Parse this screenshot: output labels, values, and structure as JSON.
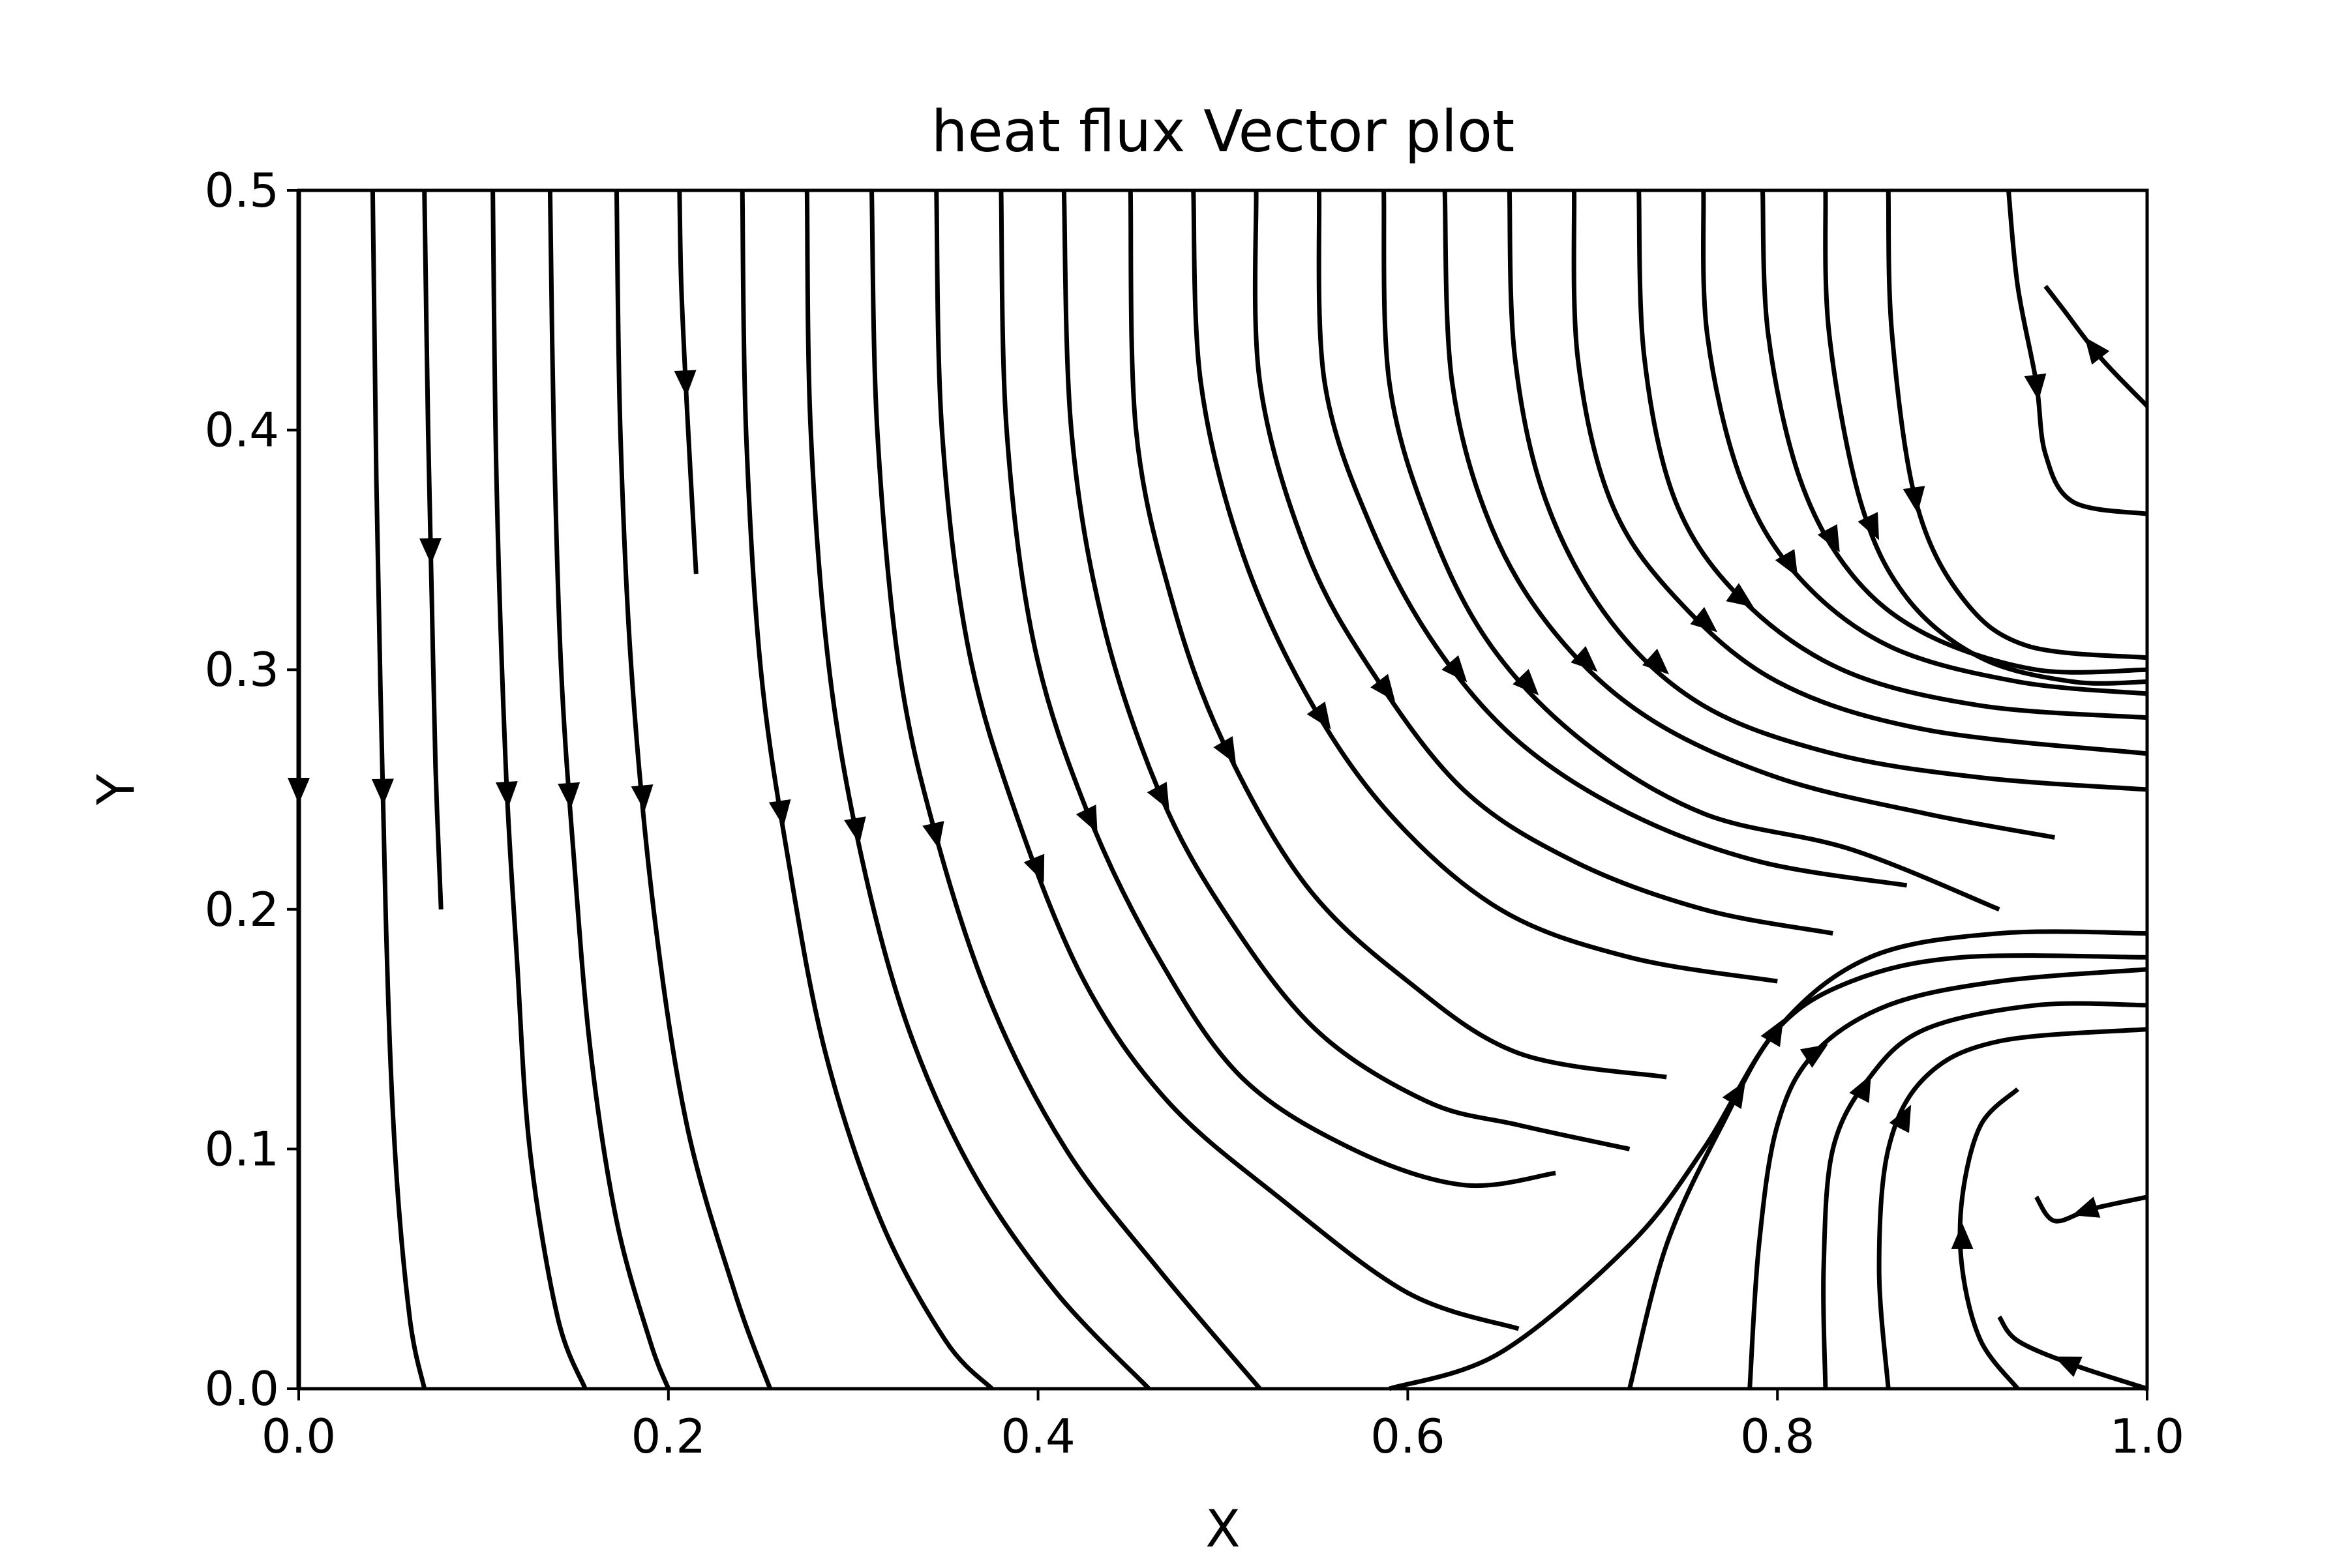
{
  "chart_data": {
    "type": "streamplot",
    "title": "heat flux Vector plot",
    "xlabel": "X",
    "ylabel": "Y",
    "xlim": [
      0.0,
      1.0
    ],
    "ylim": [
      0.0,
      0.5
    ],
    "x_ticks": [
      "0.0",
      "0.2",
      "0.4",
      "0.6",
      "0.8",
      "1.0"
    ],
    "y_ticks": [
      "0.0",
      "0.1",
      "0.2",
      "0.3",
      "0.4",
      "0.5"
    ],
    "grid": false,
    "legend": null,
    "line_color": "#000000",
    "background_color": "#ffffff",
    "streamlines": [
      {
        "points": [
          [
            0.0,
            0.5
          ],
          [
            0.0,
            0.0
          ]
        ]
      },
      {
        "points": [
          [
            0.04,
            0.5
          ],
          [
            0.042,
            0.38
          ],
          [
            0.047,
            0.2
          ],
          [
            0.052,
            0.1
          ],
          [
            0.06,
            0.03
          ],
          [
            0.068,
            0.0
          ]
        ]
      },
      {
        "points": [
          [
            0.068,
            0.5
          ],
          [
            0.07,
            0.4
          ],
          [
            0.072,
            0.33
          ],
          [
            0.074,
            0.26
          ],
          [
            0.077,
            0.2
          ]
        ]
      },
      {
        "points": [
          [
            0.105,
            0.5
          ],
          [
            0.107,
            0.38
          ],
          [
            0.112,
            0.26
          ],
          [
            0.118,
            0.18
          ],
          [
            0.125,
            0.1
          ],
          [
            0.14,
            0.03
          ],
          [
            0.155,
            0.0
          ]
        ]
      },
      {
        "points": [
          [
            0.136,
            0.5
          ],
          [
            0.138,
            0.4
          ],
          [
            0.142,
            0.3
          ],
          [
            0.149,
            0.22
          ],
          [
            0.158,
            0.14
          ],
          [
            0.172,
            0.07
          ],
          [
            0.19,
            0.02
          ],
          [
            0.2,
            0.0
          ]
        ]
      },
      {
        "points": [
          [
            0.172,
            0.5
          ],
          [
            0.174,
            0.4
          ],
          [
            0.18,
            0.3
          ],
          [
            0.192,
            0.2
          ],
          [
            0.21,
            0.11
          ],
          [
            0.236,
            0.04
          ],
          [
            0.255,
            0.0
          ]
        ]
      },
      {
        "points": [
          [
            0.206,
            0.5
          ],
          [
            0.207,
            0.46
          ],
          [
            0.21,
            0.41
          ],
          [
            0.215,
            0.34
          ]
        ]
      },
      {
        "points": [
          [
            0.24,
            0.5
          ],
          [
            0.242,
            0.4
          ],
          [
            0.25,
            0.3
          ],
          [
            0.265,
            0.22
          ],
          [
            0.285,
            0.14
          ],
          [
            0.315,
            0.07
          ],
          [
            0.35,
            0.02
          ],
          [
            0.375,
            0.0
          ]
        ]
      },
      {
        "points": [
          [
            0.275,
            0.5
          ],
          [
            0.277,
            0.4
          ],
          [
            0.287,
            0.3
          ],
          [
            0.305,
            0.22
          ],
          [
            0.33,
            0.15
          ],
          [
            0.365,
            0.09
          ],
          [
            0.41,
            0.04
          ],
          [
            0.46,
            0.0
          ]
        ]
      },
      {
        "points": [
          [
            0.31,
            0.5
          ],
          [
            0.313,
            0.4
          ],
          [
            0.325,
            0.3
          ],
          [
            0.345,
            0.23
          ],
          [
            0.375,
            0.16
          ],
          [
            0.415,
            0.1
          ],
          [
            0.465,
            0.05
          ],
          [
            0.52,
            0.0
          ]
        ]
      },
      {
        "points": [
          [
            0.345,
            0.5
          ],
          [
            0.348,
            0.4
          ],
          [
            0.362,
            0.31
          ],
          [
            0.388,
            0.24
          ],
          [
            0.425,
            0.17
          ],
          [
            0.47,
            0.12
          ],
          [
            0.53,
            0.08
          ],
          [
            0.6,
            0.04
          ],
          [
            0.66,
            0.025
          ]
        ]
      },
      {
        "points": [
          [
            0.38,
            0.5
          ],
          [
            0.383,
            0.4
          ],
          [
            0.398,
            0.31
          ],
          [
            0.427,
            0.24
          ],
          [
            0.465,
            0.18
          ],
          [
            0.51,
            0.13
          ],
          [
            0.57,
            0.1
          ],
          [
            0.63,
            0.085
          ],
          [
            0.68,
            0.09
          ]
        ]
      },
      {
        "points": [
          [
            0.414,
            0.5
          ],
          [
            0.418,
            0.4
          ],
          [
            0.435,
            0.32
          ],
          [
            0.465,
            0.25
          ],
          [
            0.5,
            0.2
          ],
          [
            0.55,
            0.15
          ],
          [
            0.61,
            0.12
          ],
          [
            0.66,
            0.11
          ],
          [
            0.72,
            0.1
          ]
        ]
      },
      {
        "points": [
          [
            0.45,
            0.5
          ],
          [
            0.453,
            0.4
          ],
          [
            0.472,
            0.33
          ],
          [
            0.5,
            0.27
          ],
          [
            0.545,
            0.21
          ],
          [
            0.6,
            0.17
          ],
          [
            0.66,
            0.14
          ],
          [
            0.74,
            0.13
          ]
        ]
      },
      {
        "points": [
          [
            0.484,
            0.5
          ],
          [
            0.488,
            0.42
          ],
          [
            0.51,
            0.35
          ],
          [
            0.545,
            0.29
          ],
          [
            0.59,
            0.24
          ],
          [
            0.65,
            0.2
          ],
          [
            0.72,
            0.18
          ],
          [
            0.8,
            0.17
          ]
        ]
      },
      {
        "points": [
          [
            0.518,
            0.5
          ],
          [
            0.52,
            0.42
          ],
          [
            0.545,
            0.35
          ],
          [
            0.58,
            0.3
          ],
          [
            0.63,
            0.25
          ],
          [
            0.69,
            0.22
          ],
          [
            0.76,
            0.2
          ],
          [
            0.83,
            0.19
          ]
        ]
      },
      {
        "points": [
          [
            0.552,
            0.5
          ],
          [
            0.555,
            0.42
          ],
          [
            0.58,
            0.36
          ],
          [
            0.615,
            0.31
          ],
          [
            0.66,
            0.27
          ],
          [
            0.72,
            0.24
          ],
          [
            0.79,
            0.22
          ],
          [
            0.87,
            0.21
          ]
        ]
      },
      {
        "points": [
          [
            0.587,
            0.5
          ],
          [
            0.59,
            0.42
          ],
          [
            0.612,
            0.36
          ],
          [
            0.645,
            0.31
          ],
          [
            0.695,
            0.27
          ],
          [
            0.76,
            0.24
          ],
          [
            0.84,
            0.225
          ],
          [
            0.92,
            0.2
          ]
        ]
      },
      {
        "points": [
          [
            0.62,
            0.5
          ],
          [
            0.624,
            0.42
          ],
          [
            0.645,
            0.36
          ],
          [
            0.68,
            0.315
          ],
          [
            0.73,
            0.28
          ],
          [
            0.8,
            0.255
          ],
          [
            0.88,
            0.24
          ],
          [
            0.95,
            0.23
          ]
        ]
      },
      {
        "points": [
          [
            0.655,
            0.5
          ],
          [
            0.658,
            0.43
          ],
          [
            0.675,
            0.37
          ],
          [
            0.71,
            0.32
          ],
          [
            0.76,
            0.285
          ],
          [
            0.83,
            0.265
          ],
          [
            0.91,
            0.255
          ],
          [
            1.0,
            0.25
          ]
        ]
      },
      {
        "points": [
          [
            0.69,
            0.5
          ],
          [
            0.692,
            0.43
          ],
          [
            0.71,
            0.37
          ],
          [
            0.745,
            0.33
          ],
          [
            0.8,
            0.295
          ],
          [
            0.88,
            0.275
          ],
          [
            1.0,
            0.265
          ]
        ]
      },
      {
        "points": [
          [
            0.725,
            0.5
          ],
          [
            0.728,
            0.43
          ],
          [
            0.745,
            0.37
          ],
          [
            0.78,
            0.33
          ],
          [
            0.835,
            0.3
          ],
          [
            0.91,
            0.285
          ],
          [
            1.0,
            0.28
          ]
        ]
      },
      {
        "points": [
          [
            0.76,
            0.5
          ],
          [
            0.762,
            0.44
          ],
          [
            0.78,
            0.38
          ],
          [
            0.81,
            0.34
          ],
          [
            0.86,
            0.31
          ],
          [
            0.93,
            0.295
          ],
          [
            1.0,
            0.29
          ]
        ]
      },
      {
        "points": [
          [
            0.792,
            0.5
          ],
          [
            0.795,
            0.44
          ],
          [
            0.812,
            0.38
          ],
          [
            0.84,
            0.34
          ],
          [
            0.88,
            0.315
          ],
          [
            0.94,
            0.3
          ],
          [
            1.0,
            0.3
          ]
        ]
      },
      {
        "points": [
          [
            0.826,
            0.5
          ],
          [
            0.828,
            0.44
          ],
          [
            0.845,
            0.37
          ],
          [
            0.87,
            0.33
          ],
          [
            0.91,
            0.305
          ],
          [
            0.96,
            0.295
          ],
          [
            1.0,
            0.295
          ]
        ]
      },
      {
        "points": [
          [
            0.86,
            0.5
          ],
          [
            0.862,
            0.44
          ],
          [
            0.875,
            0.37
          ],
          [
            0.9,
            0.33
          ],
          [
            0.935,
            0.31
          ],
          [
            1.0,
            0.305
          ]
        ]
      },
      {
        "points": [
          [
            0.925,
            0.5
          ],
          [
            0.93,
            0.46
          ],
          [
            0.94,
            0.42
          ],
          [
            0.945,
            0.39
          ],
          [
            0.96,
            0.37
          ],
          [
            1.0,
            0.365
          ]
        ]
      },
      {
        "points": [
          [
            1.0,
            0.41
          ],
          [
            0.975,
            0.43
          ],
          [
            0.955,
            0.45
          ],
          [
            0.945,
            0.46
          ]
        ]
      },
      {
        "points": [
          [
            0.59,
            0.0
          ],
          [
            0.65,
            0.015
          ],
          [
            0.72,
            0.06
          ],
          [
            0.76,
            0.1
          ],
          [
            0.8,
            0.15
          ],
          [
            0.85,
            0.18
          ],
          [
            0.92,
            0.19
          ],
          [
            1.0,
            0.19
          ]
        ]
      },
      {
        "points": [
          [
            0.72,
            0.0
          ],
          [
            0.74,
            0.06
          ],
          [
            0.77,
            0.11
          ],
          [
            0.8,
            0.15
          ],
          [
            0.84,
            0.17
          ],
          [
            0.9,
            0.18
          ],
          [
            1.0,
            0.18
          ]
        ]
      },
      {
        "points": [
          [
            0.785,
            0.0
          ],
          [
            0.79,
            0.06
          ],
          [
            0.8,
            0.11
          ],
          [
            0.82,
            0.14
          ],
          [
            0.86,
            0.16
          ],
          [
            0.92,
            0.17
          ],
          [
            1.0,
            0.175
          ]
        ]
      },
      {
        "points": [
          [
            0.826,
            0.0
          ],
          [
            0.825,
            0.05
          ],
          [
            0.83,
            0.1
          ],
          [
            0.85,
            0.13
          ],
          [
            0.88,
            0.15
          ],
          [
            0.94,
            0.16
          ],
          [
            1.0,
            0.16
          ]
        ]
      },
      {
        "points": [
          [
            0.86,
            0.0
          ],
          [
            0.855,
            0.05
          ],
          [
            0.86,
            0.1
          ],
          [
            0.88,
            0.13
          ],
          [
            0.92,
            0.145
          ],
          [
            1.0,
            0.15
          ]
        ]
      },
      {
        "points": [
          [
            0.93,
            0.0
          ],
          [
            0.91,
            0.02
          ],
          [
            0.9,
            0.05
          ],
          [
            0.9,
            0.08
          ],
          [
            0.91,
            0.11
          ],
          [
            0.93,
            0.125
          ]
        ]
      },
      {
        "points": [
          [
            1.0,
            0.08
          ],
          [
            0.97,
            0.075
          ],
          [
            0.95,
            0.07
          ],
          [
            0.94,
            0.08
          ]
        ]
      },
      {
        "points": [
          [
            1.0,
            0.0
          ],
          [
            0.96,
            0.01
          ],
          [
            0.93,
            0.02
          ],
          [
            0.92,
            0.03
          ]
        ]
      }
    ]
  }
}
